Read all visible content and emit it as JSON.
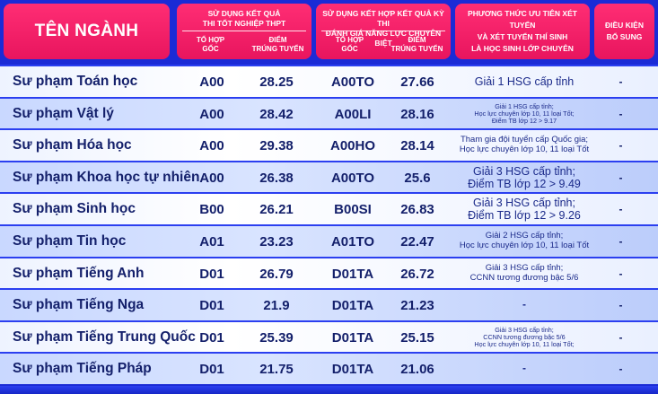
{
  "header": {
    "name": "TÊN NGÀNH",
    "thpt_title": "SỬ DỤNG KẾT QUẢ\nTHI TỐT NGHIỆP THPT",
    "thpt_sub1": "TỔ HỢP\nGỐC",
    "thpt_sub2": "ĐIỂM\nTRÚNG TUYỂN",
    "dgnl_title": "SỬ DỤNG KẾT HỢP KẾT QUẢ KỲ THI\nĐÁNH GIÁ NĂNG LỰC CHUYÊN BIỆT",
    "dgnl_sub1": "TỔ HỢP\nGỐC",
    "dgnl_sub2": "ĐIỂM\nTRÚNG TUYỂN",
    "uutien": "PHƯƠNG THỨC ƯU TIÊN XÉT TUYỂN\nVÀ XÉT TUYỂN THÍ SINH\nLÀ HỌC SINH LỚP CHUYÊN",
    "dieukien": "ĐIỀU KIỆN\nBỔ SUNG"
  },
  "rows": [
    {
      "name": "Sư phạm Toán học",
      "c1": "A00",
      "s1": "28.25",
      "c2": "A00TO",
      "s2": "27.66",
      "uu": "Giải 1 HSG cấp tỉnh",
      "uu_size": "l",
      "dk": "-"
    },
    {
      "name": "Sư phạm Vật lý",
      "c1": "A00",
      "s1": "28.42",
      "c2": "A00LI",
      "s2": "28.16",
      "uu": "Giải 1 HSG cấp tỉnh;\nHọc lực chuyên lớp 10, 11 loại Tốt;\nĐiểm TB lớp 12 > 9.17",
      "uu_size": "s",
      "dk": "-"
    },
    {
      "name": "Sư phạm Hóa học",
      "c1": "A00",
      "s1": "29.38",
      "c2": "A00HO",
      "s2": "28.14",
      "uu": "Tham gia đội tuyển cấp Quốc gia;\nHọc lực chuyên lớp 10, 11 loại Tốt",
      "uu_size": "m",
      "dk": "-"
    },
    {
      "name": "Sư phạm Khoa học tự nhiên",
      "c1": "A00",
      "s1": "26.38",
      "c2": "A00TO",
      "s2": "25.6",
      "uu": "Giải 3 HSG cấp tỉnh;\nĐiểm TB lớp 12 > 9.49",
      "uu_size": "l",
      "dk": "-"
    },
    {
      "name": "Sư phạm Sinh học",
      "c1": "B00",
      "s1": "26.21",
      "c2": "B00SI",
      "s2": "26.83",
      "uu": "Giải 3 HSG cấp tỉnh;\nĐiểm TB lớp 12 > 9.26",
      "uu_size": "l",
      "dk": "-"
    },
    {
      "name": "Sư phạm Tin học",
      "c1": "A01",
      "s1": "23.23",
      "c2": "A01TO",
      "s2": "22.47",
      "uu": "Giải 2 HSG cấp tỉnh;\nHọc lực chuyên lớp 10, 11 loại Tốt",
      "uu_size": "m",
      "dk": "-"
    },
    {
      "name": "Sư phạm Tiếng Anh",
      "c1": "D01",
      "s1": "26.79",
      "c2": "D01TA",
      "s2": "26.72",
      "uu": "Giải 3 HSG cấp tỉnh;\nCCNN tương đương bậc 5/6",
      "uu_size": "m",
      "dk": "-"
    },
    {
      "name": "Sư phạm Tiếng Nga",
      "c1": "D01",
      "s1": "21.9",
      "c2": "D01TA",
      "s2": "21.23",
      "uu": "-",
      "uu_size": "dash",
      "dk": "-"
    },
    {
      "name": "Sư phạm Tiếng Trung Quốc",
      "c1": "D01",
      "s1": "25.39",
      "c2": "D01TA",
      "s2": "25.15",
      "uu": "Giải 3 HSG cấp tỉnh;\nCCNN tương đương bậc 5/6\nHọc lực chuyên lớp 10, 11 loại Tốt;",
      "uu_size": "s",
      "dk": "-"
    },
    {
      "name": "Sư phạm Tiếng Pháp",
      "c1": "D01",
      "s1": "21.75",
      "c2": "D01TA",
      "s2": "21.06",
      "uu": "-",
      "uu_size": "dash",
      "dk": "-"
    }
  ],
  "colors": {
    "background": "#1b2bd6",
    "header_pink": "#ff2d74",
    "row_light": "#ffffff",
    "row_blue": "#c9d8ff",
    "text_dark": "#14206b"
  }
}
